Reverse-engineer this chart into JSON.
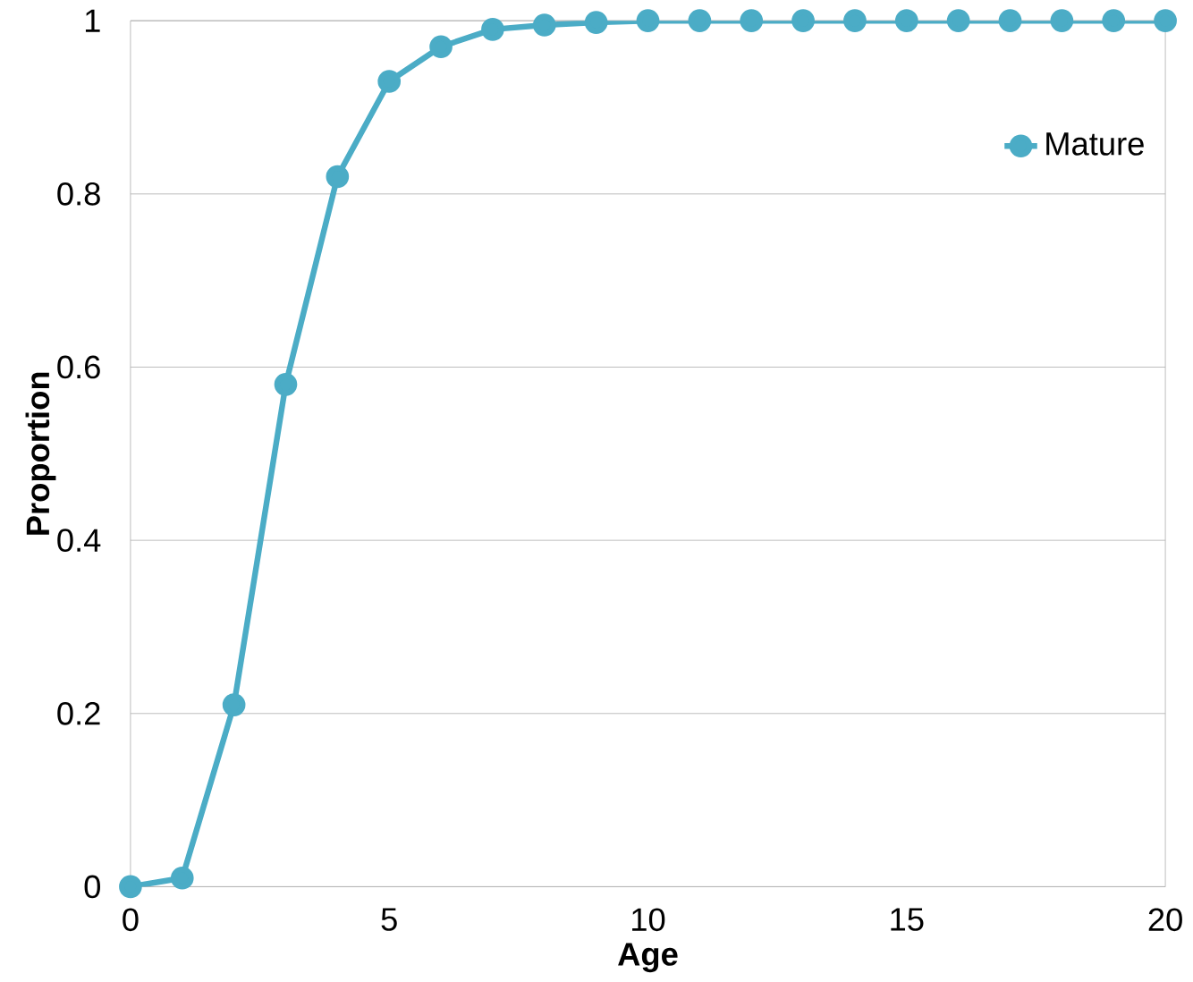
{
  "chart_data": {
    "type": "line",
    "xlabel": "Age",
    "ylabel": "Proportion",
    "x": [
      0,
      1,
      2,
      3,
      4,
      5,
      6,
      7,
      8,
      9,
      10,
      11,
      12,
      13,
      14,
      15,
      16,
      17,
      18,
      19,
      20
    ],
    "series": [
      {
        "name": "Mature",
        "color": "#4bacc6",
        "values": [
          0,
          0.01,
          0.21,
          0.58,
          0.82,
          0.93,
          0.97,
          0.99,
          0.995,
          0.998,
          1,
          1,
          1,
          1,
          1,
          1,
          1,
          1,
          1,
          1,
          1
        ]
      }
    ],
    "xlim": [
      0,
      20
    ],
    "xticks": [
      0,
      5,
      10,
      15,
      20
    ],
    "ylim": [
      0,
      1
    ],
    "yticks": [
      0,
      0.2,
      0.4,
      0.6,
      0.8,
      1
    ],
    "grid": "y",
    "legend": "top right",
    "marker": "circle",
    "line_style": "solid"
  }
}
